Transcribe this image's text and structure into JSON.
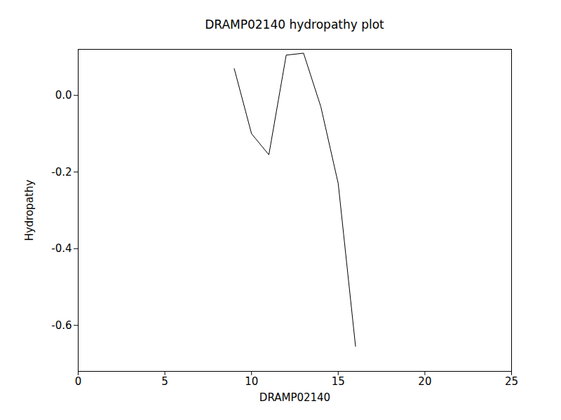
{
  "chart_data": {
    "type": "line",
    "title": "DRAMP02140 hydropathy plot",
    "x_label": "DRAMP02140",
    "y_label": "Hydropathy",
    "x": [
      9,
      10,
      11,
      12,
      13,
      14,
      15,
      16
    ],
    "values": [
      0.07,
      -0.1,
      -0.155,
      0.105,
      0.11,
      -0.03,
      -0.23,
      -0.655
    ],
    "color": "#000000",
    "xlim": [
      0,
      25
    ],
    "xticks": [
      0,
      5,
      10,
      15,
      20,
      25
    ],
    "ylim": [
      -0.72,
      0.12
    ],
    "yticks": [
      -0.6,
      -0.4,
      -0.2,
      {
        "value": 0,
        "label": "0.0"
      }
    ],
    "grid": false
  }
}
